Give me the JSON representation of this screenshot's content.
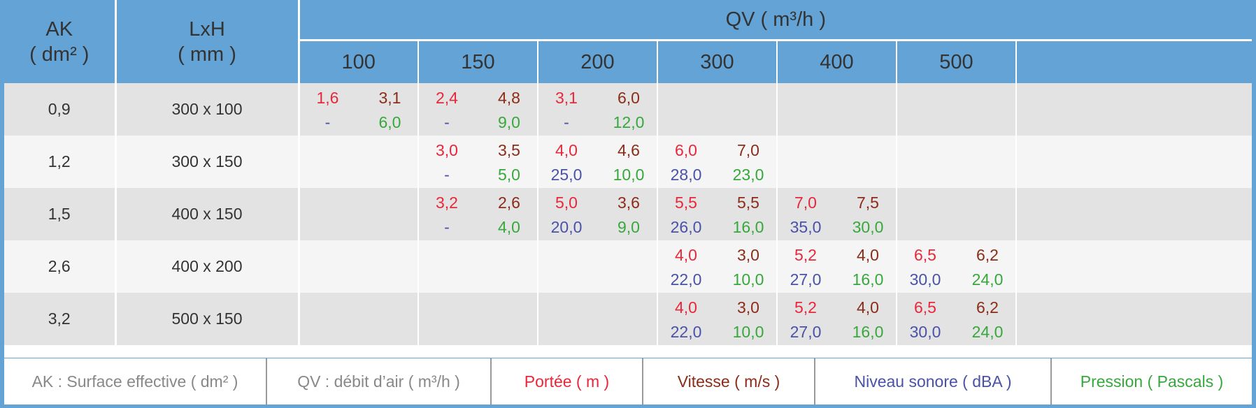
{
  "header": {
    "ak_line1": "AK",
    "ak_line2": "( dm² )",
    "lxh_line1": "LxH",
    "lxh_line2": "( mm )",
    "qv": "QV ( m³/h )",
    "columns": [
      "100",
      "150",
      "200",
      "300",
      "400",
      "500",
      ""
    ]
  },
  "rows": [
    {
      "ak": "0,9",
      "lxh": "300 x 100",
      "cells": [
        {
          "portee": "1,6",
          "vitesse": "3,1",
          "niveau": "-",
          "pression": "6,0"
        },
        {
          "portee": "2,4",
          "vitesse": "4,8",
          "niveau": "-",
          "pression": "9,0"
        },
        {
          "portee": "3,1",
          "vitesse": "6,0",
          "niveau": "-",
          "pression": "12,0"
        },
        null,
        null,
        null,
        null
      ]
    },
    {
      "ak": "1,2",
      "lxh": "300 x 150",
      "cells": [
        null,
        {
          "portee": "3,0",
          "vitesse": "3,5",
          "niveau": "-",
          "pression": "5,0"
        },
        {
          "portee": "4,0",
          "vitesse": "4,6",
          "niveau": "25,0",
          "pression": "10,0"
        },
        {
          "portee": "6,0",
          "vitesse": "7,0",
          "niveau": "28,0",
          "pression": "23,0"
        },
        null,
        null,
        null
      ]
    },
    {
      "ak": "1,5",
      "lxh": "400 x 150",
      "cells": [
        null,
        {
          "portee": "3,2",
          "vitesse": "2,6",
          "niveau": "-",
          "pression": "4,0"
        },
        {
          "portee": "5,0",
          "vitesse": "3,6",
          "niveau": "20,0",
          "pression": "9,0"
        },
        {
          "portee": "5,5",
          "vitesse": "5,5",
          "niveau": "26,0",
          "pression": "16,0"
        },
        {
          "portee": "7,0",
          "vitesse": "7,5",
          "niveau": "35,0",
          "pression": "30,0"
        },
        null,
        null
      ]
    },
    {
      "ak": "2,6",
      "lxh": "400 x 200",
      "cells": [
        null,
        null,
        null,
        {
          "portee": "4,0",
          "vitesse": "3,0",
          "niveau": "22,0",
          "pression": "10,0"
        },
        {
          "portee": "5,2",
          "vitesse": "4,0",
          "niveau": "27,0",
          "pression": "16,0"
        },
        {
          "portee": "6,5",
          "vitesse": "6,2",
          "niveau": "30,0",
          "pression": "24,0"
        },
        null
      ]
    },
    {
      "ak": "3,2",
      "lxh": "500 x 150",
      "cells": [
        null,
        null,
        null,
        {
          "portee": "4,0",
          "vitesse": "3,0",
          "niveau": "22,0",
          "pression": "10,0"
        },
        {
          "portee": "5,2",
          "vitesse": "4,0",
          "niveau": "27,0",
          "pression": "16,0"
        },
        {
          "portee": "6,5",
          "vitesse": "6,2",
          "niveau": "30,0",
          "pression": "24,0"
        },
        null
      ]
    }
  ],
  "legend": {
    "ak": "AK : Surface effective ( dm² )",
    "qv": "QV : débit d’air ( m³/h )",
    "portee": "Portée ( m )",
    "vitesse": "Vitesse ( m/s )",
    "niveau": "Niveau sonore ( dBA )",
    "pression": "Pression ( Pascals )"
  },
  "colors": {
    "header_bg": "#63a3d5",
    "portee": "#e8283a",
    "vitesse": "#8b2c18",
    "niveau": "#4a52a8",
    "pression": "#36a83c"
  }
}
